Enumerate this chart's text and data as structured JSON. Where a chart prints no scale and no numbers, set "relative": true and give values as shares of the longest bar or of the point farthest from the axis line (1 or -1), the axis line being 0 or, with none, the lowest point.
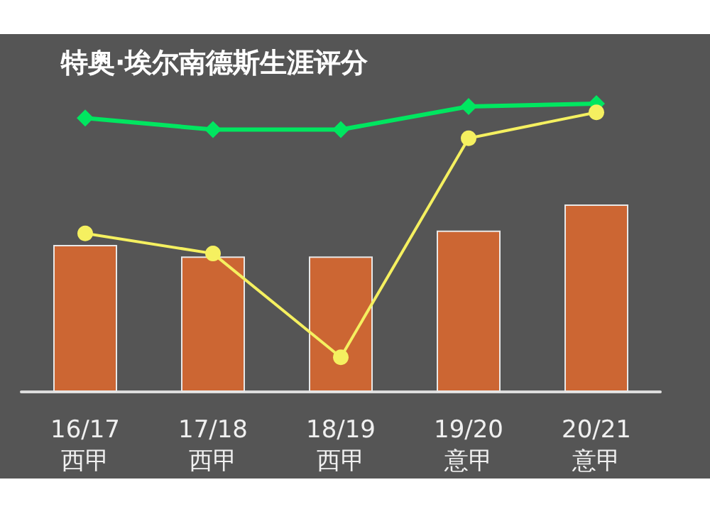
{
  "chart_data": {
    "type": "bar",
    "title": "特奥·埃尔南德斯生涯评分",
    "relative": true,
    "categories": [
      "16/17\n西甲",
      "17/18\n西甲",
      "18/19\n西甲",
      "19/20\n意甲",
      "20/21\n意甲"
    ],
    "series": [
      {
        "color": "#cc6633",
        "values": [
          0.51,
          0.47,
          0.47,
          0.56,
          0.65
        ]
      },
      {
        "type": "line",
        "color": "#00e660",
        "marker": "diamond",
        "values": [
          0.95,
          0.91,
          0.91,
          0.99,
          1
        ]
      },
      {
        "type": "line",
        "color": "#f5f060",
        "marker": "circle",
        "values": [
          0.55,
          0.48,
          0.12,
          0.88,
          0.97
        ]
      }
    ],
    "grid": false
  }
}
